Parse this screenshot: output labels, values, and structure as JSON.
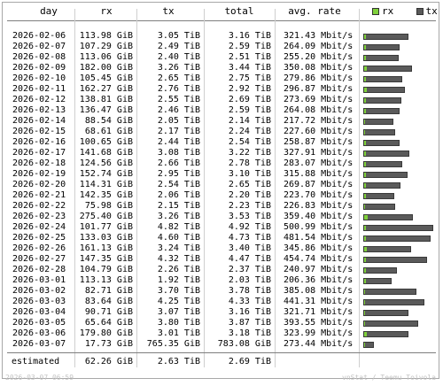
{
  "columns": {
    "day": "day",
    "rx": "rx",
    "tx": "tx",
    "total": "total",
    "rate": "avg. rate"
  },
  "legend": {
    "rx_label": "rx",
    "tx_label": "tx",
    "rx_color": "#7fd13b",
    "tx_color": "#5a5a5a"
  },
  "rows": [
    {
      "day": "2026-02-06",
      "rx": "113.98 GiB",
      "tx": "3.05 TiB",
      "total": "3.16 TiB",
      "rate": "321.43 Mbit/s"
    },
    {
      "day": "2026-02-07",
      "rx": "107.29 GiB",
      "tx": "2.49 TiB",
      "total": "2.59 TiB",
      "rate": "264.09 Mbit/s"
    },
    {
      "day": "2026-02-08",
      "rx": "113.06 GiB",
      "tx": "2.40 TiB",
      "total": "2.51 TiB",
      "rate": "255.20 Mbit/s"
    },
    {
      "day": "2026-02-09",
      "rx": "182.00 GiB",
      "tx": "3.26 TiB",
      "total": "3.44 TiB",
      "rate": "350.08 Mbit/s"
    },
    {
      "day": "2026-02-10",
      "rx": "105.45 GiB",
      "tx": "2.65 TiB",
      "total": "2.75 TiB",
      "rate": "279.86 Mbit/s"
    },
    {
      "day": "2026-02-11",
      "rx": "162.27 GiB",
      "tx": "2.76 TiB",
      "total": "2.92 TiB",
      "rate": "296.87 Mbit/s"
    },
    {
      "day": "2026-02-12",
      "rx": "138.81 GiB",
      "tx": "2.55 TiB",
      "total": "2.69 TiB",
      "rate": "273.69 Mbit/s"
    },
    {
      "day": "2026-02-13",
      "rx": "136.47 GiB",
      "tx": "2.46 TiB",
      "total": "2.59 TiB",
      "rate": "264.08 Mbit/s"
    },
    {
      "day": "2026-02-14",
      "rx": "88.54 GiB",
      "tx": "2.05 TiB",
      "total": "2.14 TiB",
      "rate": "217.72 Mbit/s"
    },
    {
      "day": "2026-02-15",
      "rx": "68.61 GiB",
      "tx": "2.17 TiB",
      "total": "2.24 TiB",
      "rate": "227.60 Mbit/s"
    },
    {
      "day": "2026-02-16",
      "rx": "100.65 GiB",
      "tx": "2.44 TiB",
      "total": "2.54 TiB",
      "rate": "258.87 Mbit/s"
    },
    {
      "day": "2026-02-17",
      "rx": "141.68 GiB",
      "tx": "3.08 TiB",
      "total": "3.22 TiB",
      "rate": "327.91 Mbit/s"
    },
    {
      "day": "2026-02-18",
      "rx": "124.56 GiB",
      "tx": "2.66 TiB",
      "total": "2.78 TiB",
      "rate": "283.07 Mbit/s"
    },
    {
      "day": "2026-02-19",
      "rx": "152.74 GiB",
      "tx": "2.95 TiB",
      "total": "3.10 TiB",
      "rate": "315.88 Mbit/s"
    },
    {
      "day": "2026-02-20",
      "rx": "114.31 GiB",
      "tx": "2.54 TiB",
      "total": "2.65 TiB",
      "rate": "269.87 Mbit/s"
    },
    {
      "day": "2026-02-21",
      "rx": "142.35 GiB",
      "tx": "2.06 TiB",
      "total": "2.20 TiB",
      "rate": "223.70 Mbit/s"
    },
    {
      "day": "2026-02-22",
      "rx": "75.98 GiB",
      "tx": "2.15 TiB",
      "total": "2.23 TiB",
      "rate": "226.83 Mbit/s"
    },
    {
      "day": "2026-02-23",
      "rx": "275.40 GiB",
      "tx": "3.26 TiB",
      "total": "3.53 TiB",
      "rate": "359.40 Mbit/s"
    },
    {
      "day": "2026-02-24",
      "rx": "101.77 GiB",
      "tx": "4.82 TiB",
      "total": "4.92 TiB",
      "rate": "500.99 Mbit/s"
    },
    {
      "day": "2026-02-25",
      "rx": "133.03 GiB",
      "tx": "4.60 TiB",
      "total": "4.73 TiB",
      "rate": "481.54 Mbit/s"
    },
    {
      "day": "2026-02-26",
      "rx": "161.13 GiB",
      "tx": "3.24 TiB",
      "total": "3.40 TiB",
      "rate": "345.86 Mbit/s"
    },
    {
      "day": "2026-02-27",
      "rx": "147.35 GiB",
      "tx": "4.32 TiB",
      "total": "4.47 TiB",
      "rate": "454.74 Mbit/s"
    },
    {
      "day": "2026-02-28",
      "rx": "104.79 GiB",
      "tx": "2.26 TiB",
      "total": "2.37 TiB",
      "rate": "240.97 Mbit/s"
    },
    {
      "day": "2026-03-01",
      "rx": "113.13 GiB",
      "tx": "1.92 TiB",
      "total": "2.03 TiB",
      "rate": "206.36 Mbit/s"
    },
    {
      "day": "2026-03-02",
      "rx": "82.71 GiB",
      "tx": "3.70 TiB",
      "total": "3.78 TiB",
      "rate": "385.08 Mbit/s"
    },
    {
      "day": "2026-03-03",
      "rx": "83.64 GiB",
      "tx": "4.25 TiB",
      "total": "4.33 TiB",
      "rate": "441.31 Mbit/s"
    },
    {
      "day": "2026-03-04",
      "rx": "90.71 GiB",
      "tx": "3.07 TiB",
      "total": "3.16 TiB",
      "rate": "321.71 Mbit/s"
    },
    {
      "day": "2026-03-05",
      "rx": "65.64 GiB",
      "tx": "3.80 TiB",
      "total": "3.87 TiB",
      "rate": "393.55 Mbit/s"
    },
    {
      "day": "2026-03-06",
      "rx": "179.80 GiB",
      "tx": "3.01 TiB",
      "total": "3.18 TiB",
      "rate": "323.99 Mbit/s"
    },
    {
      "day": "2026-03-07",
      "rx": "17.73 GiB",
      "tx": "765.35 GiB",
      "total": "783.08 GiB",
      "rate": "273.44 Mbit/s"
    }
  ],
  "estimated": {
    "label": "estimated",
    "rx": "62.26 GiB",
    "tx": "2.63 TiB",
    "total": "2.69 TiB"
  },
  "footer": {
    "left": "2026-03-07 06:59",
    "right": "vnStat / Teemu Toivola"
  }
}
